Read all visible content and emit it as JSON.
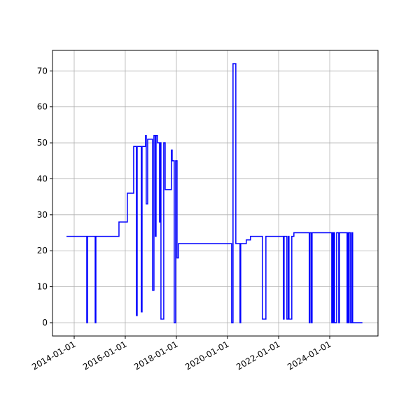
{
  "chart_data": {
    "type": "line",
    "step": "post",
    "color": "#0000ff",
    "grid": true,
    "x": [
      "2013-09-13",
      "2014-06-30",
      "2014-07-10",
      "2014-10-28",
      "2014-11-07",
      "2015-10-03",
      "2016-01-31",
      "2016-04-30",
      "2016-06-09",
      "2016-06-19",
      "2016-08-18",
      "2016-08-28",
      "2016-10-17",
      "2016-10-27",
      "2016-11-16",
      "2017-01-25",
      "2017-02-14",
      "2017-03-06",
      "2017-03-16",
      "2017-04-05",
      "2017-05-05",
      "2017-05-15",
      "2017-05-25",
      "2017-07-04",
      "2017-07-24",
      "2017-10-22",
      "2017-11-01",
      "2017-12-01",
      "2017-12-21",
      "2018-01-10",
      "2018-01-30",
      "2020-02-29",
      "2020-03-20",
      "2020-04-29",
      "2020-06-28",
      "2020-07-08",
      "2020-09-26",
      "2020-11-25",
      "2021-05-14",
      "2021-07-03",
      "2022-03-10",
      "2022-03-20",
      "2022-04-29",
      "2022-05-19",
      "2022-05-29",
      "2022-07-08",
      "2022-08-07",
      "2023-03-15",
      "2023-03-25",
      "2023-04-14",
      "2023-04-24",
      "2024-01-30",
      "2024-02-09",
      "2024-02-19",
      "2024-02-29",
      "2024-03-10",
      "2024-04-09",
      "2024-05-09",
      "2024-05-19",
      "2024-09-05",
      "2024-09-15",
      "2024-09-25",
      "2024-10-05",
      "2024-10-25",
      "2024-11-14",
      "2024-11-24",
      "2025-04-12"
    ],
    "values": [
      24,
      0,
      24,
      0,
      24,
      28,
      36,
      49,
      2,
      49,
      3,
      49,
      52,
      33,
      51,
      9,
      52,
      24,
      52,
      50,
      28,
      50,
      1,
      50,
      37,
      48,
      45,
      0,
      45,
      18,
      22,
      0,
      72,
      22,
      0,
      22,
      23,
      24,
      1,
      24,
      1,
      24,
      1,
      24,
      1,
      24,
      25,
      0,
      25,
      0,
      25,
      0,
      25,
      0,
      25,
      0,
      25,
      0,
      25,
      0,
      25,
      0,
      25,
      0,
      25,
      0,
      0
    ],
    "xlim": [
      "2013-02-25",
      "2025-11-21"
    ],
    "xticks": [
      "2014-01-01",
      "2016-01-01",
      "2018-01-01",
      "2020-01-01",
      "2022-01-01",
      "2024-01-01"
    ],
    "ylim": [
      -3.7,
      75.7
    ],
    "yticks": [
      0,
      10,
      20,
      30,
      40,
      50,
      60,
      70
    ]
  }
}
